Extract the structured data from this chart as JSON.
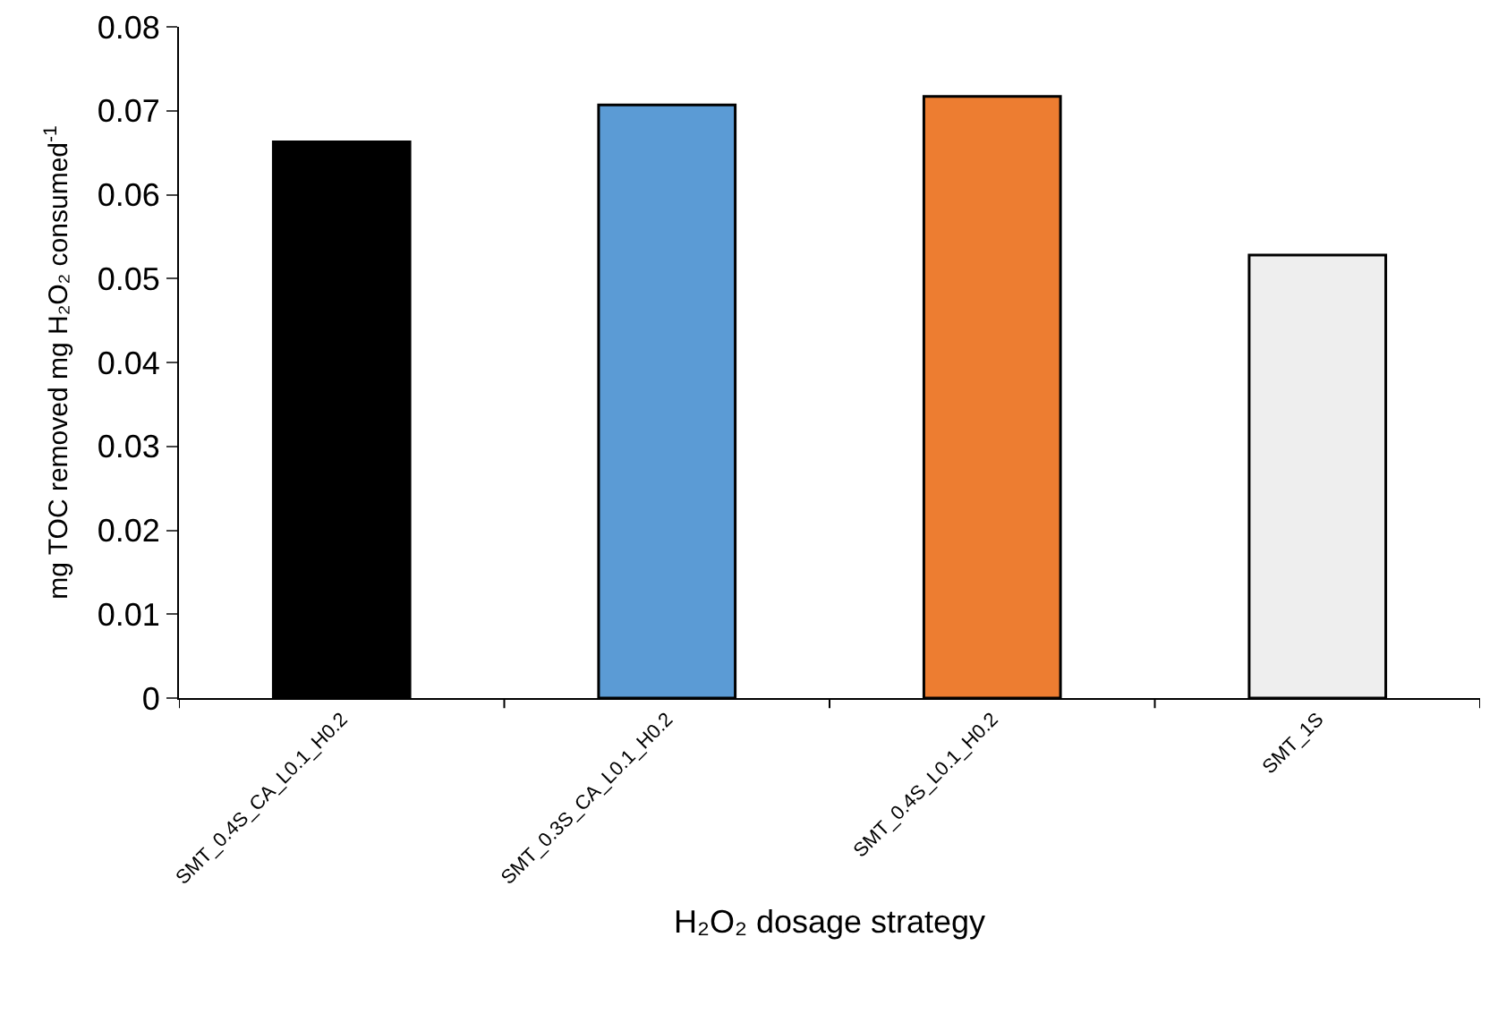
{
  "chart_data": {
    "type": "bar",
    "categories": [
      "SMT_0.4S_CA_L0.1_H0.2",
      "SMT_0.3S_CA_L0.1_H0.2",
      "SMT_0.4S_L0.1_H0.2",
      "SMT_1S"
    ],
    "values": [
      0.0663,
      0.0707,
      0.0717,
      0.0528
    ],
    "colors": [
      "#000000",
      "#5b9bd5",
      "#ed7d31",
      "#eeeeee"
    ],
    "xlabel": "H₂O₂ dosage strategy",
    "ylabel": "mg TOC removed mg H₂O₂ consumed$^{-1}$",
    "ylim": [
      0,
      0.08
    ],
    "yticks": [
      0,
      0.01,
      0.02,
      0.03,
      0.04,
      0.05,
      0.06,
      0.07,
      0.08
    ]
  }
}
